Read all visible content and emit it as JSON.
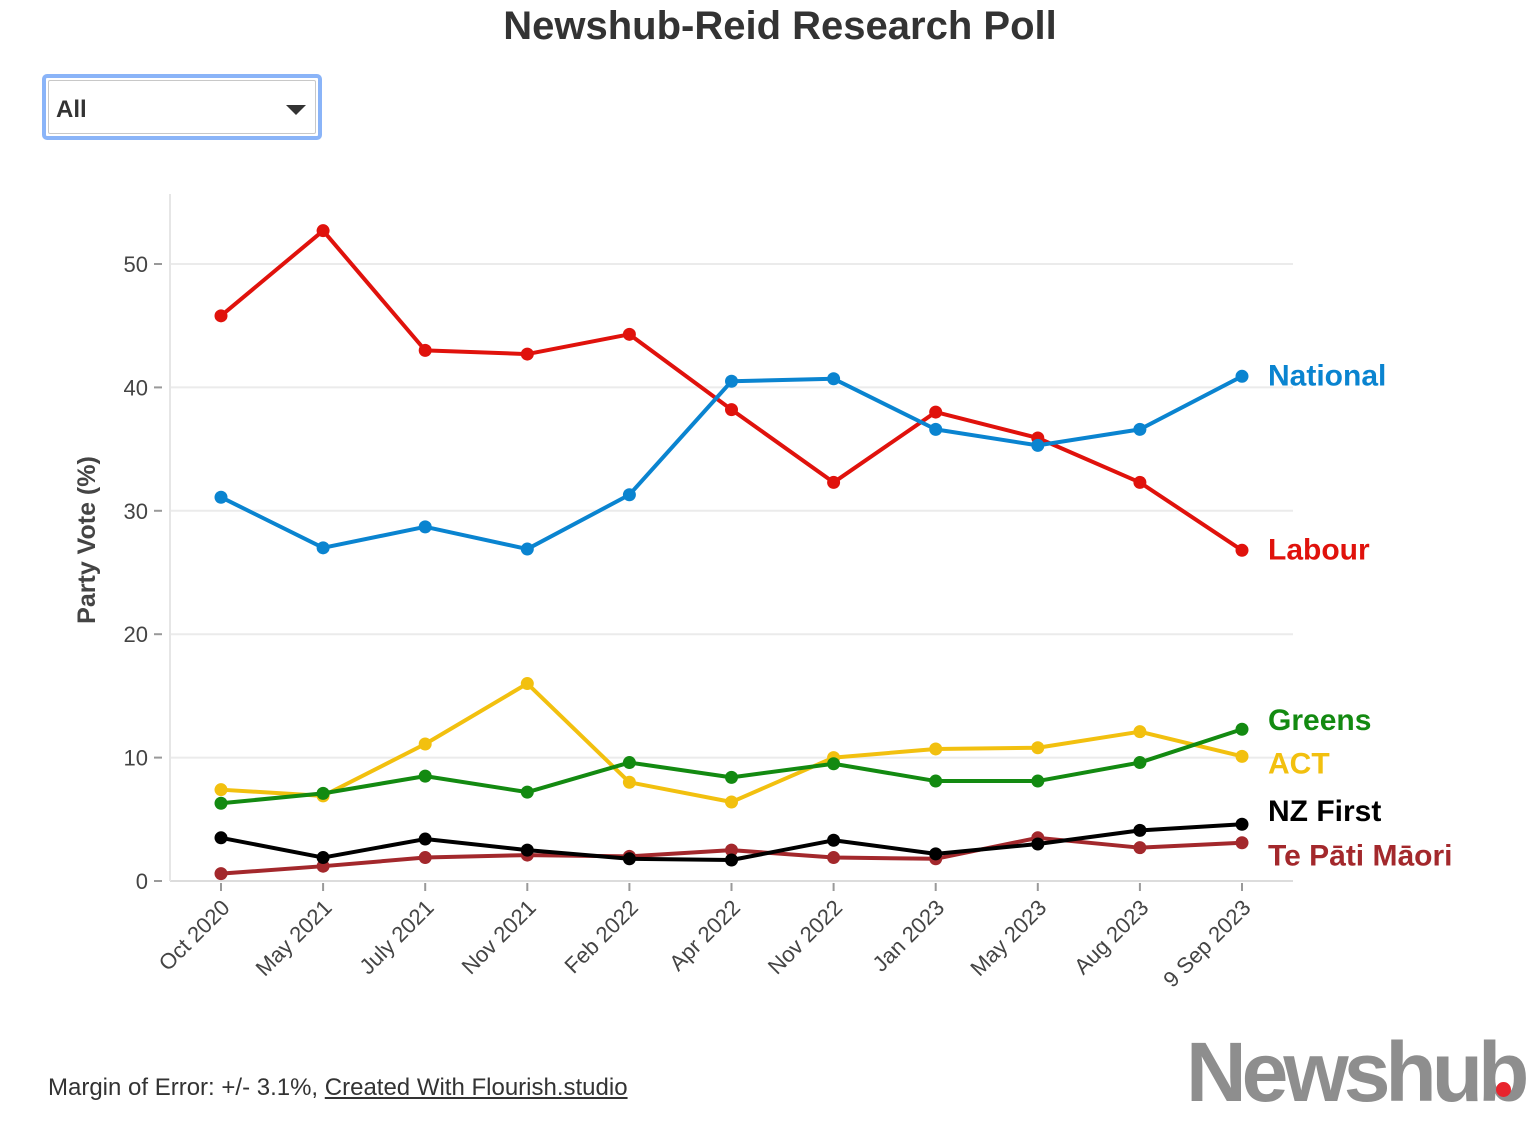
{
  "filter": {
    "selected": "All"
  },
  "footer": {
    "margin_text": "Margin of Error: +/- 3.1%, ",
    "link_text": "Created With Flourish.studio"
  },
  "logo": {
    "text": "Newshub",
    "dot_color": "#e8242d"
  },
  "chart_data": {
    "type": "line",
    "title": "Newshub-Reid Research Poll",
    "xlabel": "",
    "ylabel": "Party Vote (%)",
    "ylim": [
      0,
      55
    ],
    "yticks": [
      0,
      10,
      20,
      30,
      40,
      50
    ],
    "grid": true,
    "legend": "inline-right",
    "categories": [
      "Oct 2020",
      "May 2021",
      "July 2021",
      "Nov 2021",
      "Feb 2022",
      "Apr 2022",
      "Nov 2022",
      "Jan 2023",
      "May 2023",
      "Aug 2023",
      "9 Sep 2023"
    ],
    "series": [
      {
        "name": "National",
        "color": "#0a84d0",
        "values": [
          31.1,
          27.0,
          28.7,
          26.9,
          31.3,
          40.5,
          40.7,
          36.6,
          35.3,
          36.6,
          40.9
        ]
      },
      {
        "name": "Labour",
        "color": "#e0120c",
        "values": [
          45.8,
          52.7,
          43.0,
          42.7,
          44.3,
          38.2,
          32.3,
          38.0,
          35.9,
          32.3,
          26.8
        ]
      },
      {
        "name": "Greens",
        "color": "#138a11",
        "values": [
          6.3,
          7.1,
          8.5,
          7.2,
          9.6,
          8.4,
          9.5,
          8.1,
          8.1,
          9.6,
          12.3
        ]
      },
      {
        "name": "ACT",
        "color": "#f2c00f",
        "values": [
          7.4,
          6.9,
          11.1,
          16.0,
          8.0,
          6.4,
          10.0,
          10.7,
          10.8,
          12.1,
          10.1
        ]
      },
      {
        "name": "NZ First",
        "color": "#000000",
        "values": [
          3.5,
          1.9,
          3.4,
          2.5,
          1.8,
          1.7,
          3.3,
          2.2,
          3.0,
          4.1,
          4.6
        ]
      },
      {
        "name": "Te Pāti Māori",
        "color": "#a3282c",
        "values": [
          0.6,
          1.2,
          1.9,
          2.1,
          2.0,
          2.5,
          1.9,
          1.8,
          3.5,
          2.7,
          3.1
        ]
      }
    ]
  }
}
